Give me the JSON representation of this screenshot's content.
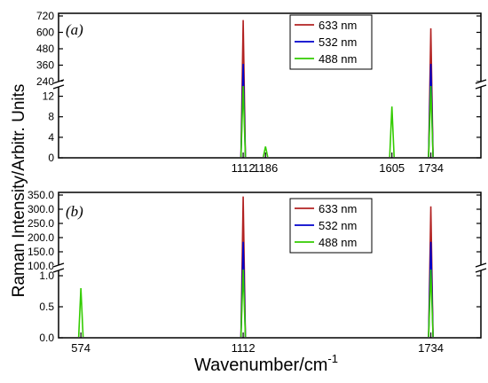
{
  "ylabel": "Raman Intensity/Arbitr. Units",
  "xlabel_main": "Wavenumber/cm",
  "xlabel_sup": "-1",
  "colors": {
    "633 nm": "#b22222",
    "532 nm": "#0000cc",
    "488 nm": "#33cc00"
  },
  "chart_data": [
    {
      "type": "line",
      "panel_label": "(a)",
      "x_ticks": [
        "1112",
        "1186",
        "1605",
        "1734"
      ],
      "y_upper_ticks": [
        240,
        360,
        480,
        600,
        720
      ],
      "y_lower_ticks": [
        0,
        4,
        8,
        12
      ],
      "ylim_upper": [
        240,
        720
      ],
      "ylim_lower": [
        0,
        14
      ],
      "legend_placement": "top-right",
      "series": [
        {
          "name": "633 nm",
          "peaks": [
            {
              "x": 1112,
              "y": 690
            },
            {
              "x": 1734,
              "y": 630
            }
          ]
        },
        {
          "name": "532 nm",
          "peaks": [
            {
              "x": 1112,
              "y": 370
            },
            {
              "x": 1734,
              "y": 370
            }
          ]
        },
        {
          "name": "488 nm",
          "peaks": [
            {
              "x": 1112,
              "y": 14
            },
            {
              "x": 1186,
              "y": 2.2
            },
            {
              "x": 1605,
              "y": 10
            },
            {
              "x": 1734,
              "y": 14
            }
          ]
        }
      ]
    },
    {
      "type": "line",
      "panel_label": "(b)",
      "x_ticks": [
        "574",
        "1112",
        "1734"
      ],
      "y_upper_ticks": [
        100,
        150,
        200,
        250,
        300,
        350
      ],
      "y_lower_ticks": [
        0.0,
        0.5,
        1.0
      ],
      "ylim_upper": [
        100,
        350
      ],
      "ylim_lower": [
        0,
        1.1
      ],
      "legend_placement": "top-right",
      "series": [
        {
          "name": "633 nm",
          "peaks": [
            {
              "x": 1112,
              "y": 345
            },
            {
              "x": 1734,
              "y": 310
            }
          ]
        },
        {
          "name": "532 nm",
          "peaks": [
            {
              "x": 1112,
              "y": 185
            },
            {
              "x": 1734,
              "y": 185
            }
          ]
        },
        {
          "name": "488 nm",
          "peaks": [
            {
              "x": 574,
              "y": 0.8
            },
            {
              "x": 1112,
              "y": 1.1
            },
            {
              "x": 1734,
              "y": 1.1
            }
          ]
        }
      ]
    }
  ]
}
